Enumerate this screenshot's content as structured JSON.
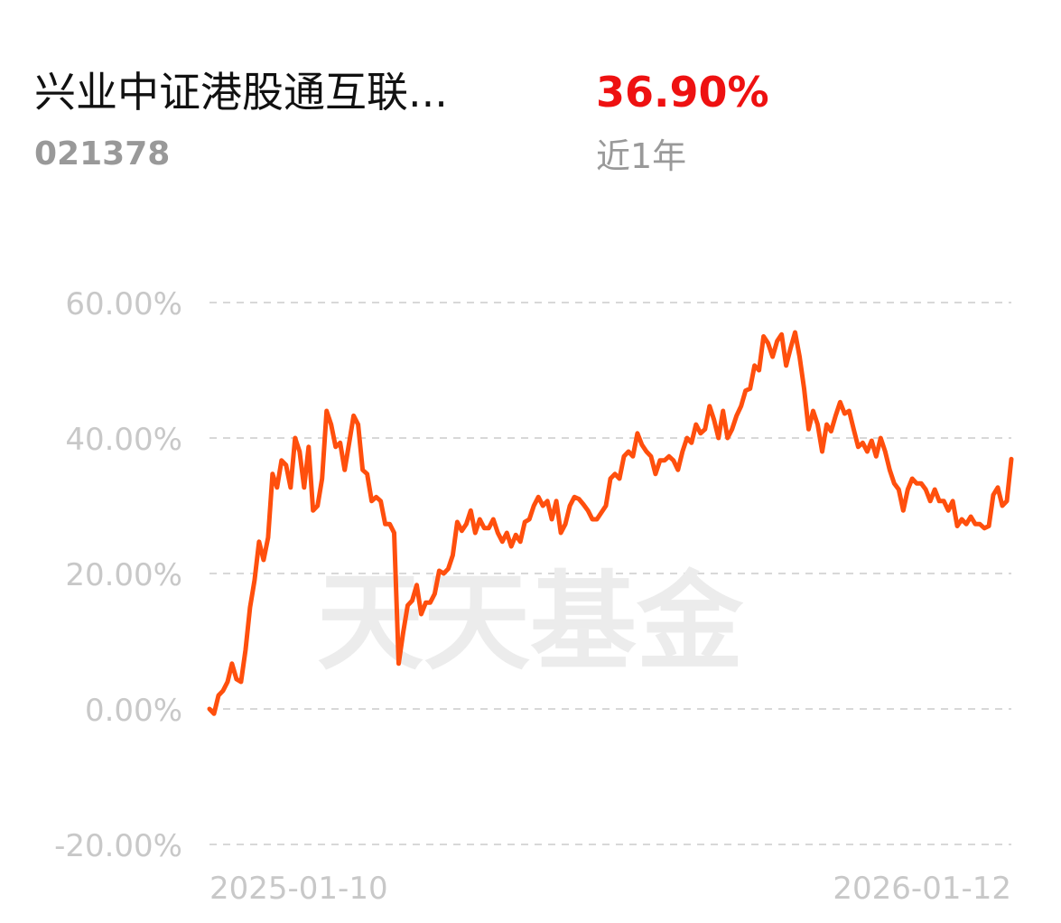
{
  "header": {
    "name": "兴业中证港股通互联...",
    "code": "021378",
    "return": "36.90%",
    "period": "近1年"
  },
  "chart_data": {
    "type": "line",
    "watermark": "天天基金",
    "categories": [
      "2025-01-10",
      null,
      null,
      null,
      null,
      null,
      null,
      null,
      null,
      null,
      null,
      null,
      null,
      null,
      null,
      null,
      null,
      null,
      null,
      null,
      null,
      null,
      null,
      null,
      null,
      null,
      null,
      null,
      null,
      null,
      null,
      null,
      null,
      null,
      null,
      null,
      null,
      null,
      null,
      null,
      null,
      null,
      null,
      null,
      null,
      null,
      null,
      null,
      null,
      null,
      null,
      null,
      null,
      null,
      null,
      null,
      null,
      null,
      null,
      null,
      null,
      null,
      null,
      null,
      null,
      null,
      null,
      null,
      null,
      null,
      null,
      null,
      null,
      null,
      null,
      null,
      null,
      null,
      null,
      null,
      null,
      null,
      null,
      null,
      null,
      null,
      null,
      null,
      null,
      null,
      null,
      null,
      null,
      null,
      null,
      null,
      null,
      null,
      null,
      null,
      null,
      null,
      null,
      null,
      null,
      null,
      null,
      null,
      null,
      null,
      null,
      null,
      null,
      null,
      null,
      null,
      null,
      null,
      null,
      null,
      null,
      null,
      null,
      null,
      null,
      null,
      null,
      null,
      null,
      null,
      null,
      null,
      null,
      null,
      null,
      null,
      null,
      null,
      null,
      null,
      null,
      null,
      null,
      null,
      null,
      null,
      null,
      null,
      null,
      null,
      null,
      null,
      null,
      null,
      null,
      null,
      null,
      null,
      null,
      null,
      null,
      null,
      null,
      null,
      null,
      null,
      null,
      null,
      null,
      null,
      null,
      null,
      null,
      null,
      null,
      null,
      null,
      null,
      "2026-01-12"
    ],
    "series": [
      {
        "color": "#ff4f0d",
        "values": [
          0,
          -0.7,
          2,
          2.7,
          4,
          6.7,
          4.4,
          4,
          8.7,
          15,
          19,
          24.7,
          22,
          25.3,
          34.7,
          32.7,
          36.7,
          36,
          32.7,
          40,
          38,
          32.7,
          38.7,
          29.3,
          30,
          34,
          44,
          42,
          38.7,
          39.3,
          35.3,
          39.3,
          43.3,
          42,
          35.3,
          34.7,
          30.7,
          31.3,
          30.7,
          27.3,
          27.3,
          26,
          6.7,
          11.3,
          15.3,
          16,
          18.3,
          14,
          15.7,
          15.7,
          17,
          20.4,
          20,
          20.7,
          22.7,
          27.6,
          26.3,
          27.3,
          29.3,
          26,
          28,
          26.7,
          26.7,
          28,
          26,
          24.7,
          26,
          24,
          25.7,
          24.7,
          27.6,
          28,
          30,
          31.3,
          30,
          30.7,
          28,
          30.7,
          26,
          27.3,
          30,
          31.3,
          31,
          30.2,
          29.3,
          28,
          28,
          29,
          30,
          34,
          34.7,
          34,
          37.3,
          38,
          37.3,
          40.7,
          39,
          38,
          37.3,
          34.7,
          36.7,
          36.7,
          37.3,
          36.7,
          35.3,
          38,
          40,
          39.3,
          42,
          40.7,
          41.3,
          44.7,
          42.7,
          40,
          44,
          40,
          41.3,
          43.3,
          44.7,
          47,
          47.3,
          50.7,
          50,
          55,
          54,
          52,
          54.3,
          55.3,
          50.7,
          53.3,
          55.6,
          52,
          47.3,
          41.3,
          44,
          42,
          38,
          42,
          41,
          43.3,
          45.3,
          43.6,
          44,
          41.3,
          38.7,
          39.3,
          38,
          39.6,
          37.3,
          40,
          38,
          35.3,
          33.3,
          32.4,
          29.3,
          32.4,
          34,
          33.3,
          33.3,
          32.4,
          30.7,
          32.4,
          30.7,
          30.7,
          29.3,
          30.7,
          27,
          28,
          27.3,
          28.4,
          27.3,
          27.3,
          26.7,
          27,
          31.6,
          32.7,
          30,
          30.7,
          36.9
        ]
      }
    ],
    "ylim": [
      -20,
      60
    ],
    "yticks": [
      {
        "value": -20,
        "label": "-20.00%"
      },
      {
        "value": 0,
        "label": "0.00%"
      },
      {
        "value": 20,
        "label": "20.00%"
      },
      {
        "value": 40,
        "label": "40.00%"
      },
      {
        "value": 60,
        "label": "60.00%"
      }
    ],
    "grid": true
  }
}
